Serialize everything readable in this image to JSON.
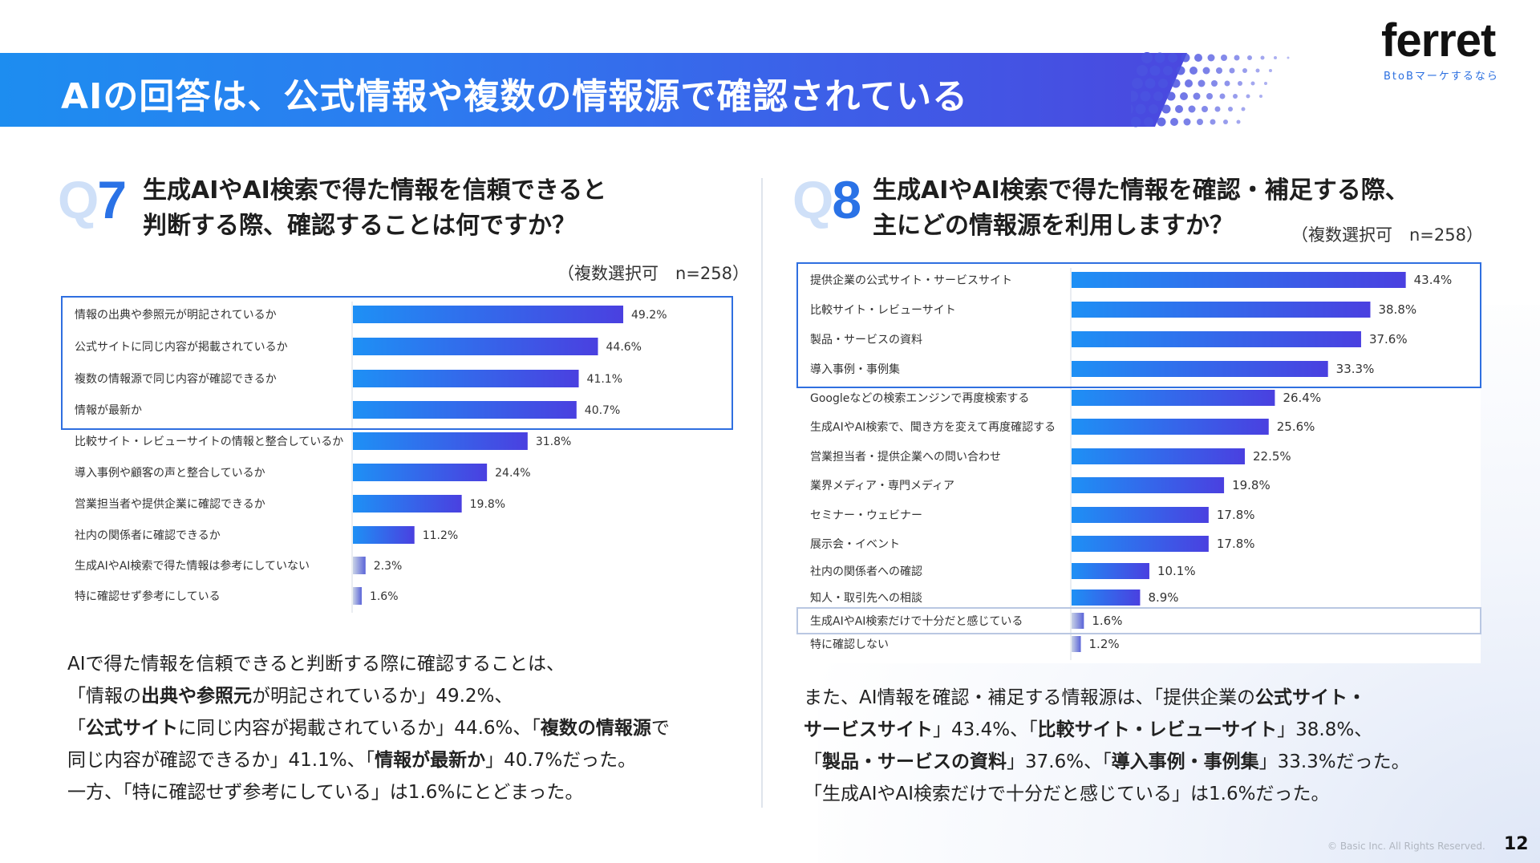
{
  "header": {
    "title": "AIの回答は、公式情報や複数の情報源で確認されている",
    "logo_text": "ferret",
    "logo_tagline": "BtoBマーケするなら"
  },
  "q7": {
    "label_q": "Q",
    "label_num": "7",
    "title_line1": "生成AIやAI検索で得た情報を信頼できると",
    "title_line2": "判断する際、確認することは何ですか？",
    "note": "（複数選択可　n=258）"
  },
  "q8": {
    "label_q": "Q",
    "label_num": "8",
    "title_line1": "生成AIやAI検索で得た情報を確認・補足する際、",
    "title_line2": "主にどの情報源を利用しますか？",
    "note": "（複数選択可　n=258）"
  },
  "chart_data": [
    {
      "type": "bar",
      "orientation": "horizontal",
      "categories": [
        "情報の出典や参照元が明記されているか",
        "公式サイトに同じ内容が掲載されているか",
        "複数の情報源で同じ内容が確認できるか",
        "情報が最新か",
        "比較サイト・レビューサイトの情報と整合しているか",
        "導入事例や顧客の声と整合しているか",
        "営業担当者や提供企業に確認できるか",
        "社内の関係者に確認できるか",
        "生成AIやAI検索で得た情報は参考にしていない",
        "特に確認せず参考にしている"
      ],
      "values": [
        49.2,
        44.6,
        41.1,
        40.7,
        31.8,
        24.4,
        19.8,
        11.2,
        2.3,
        1.6
      ],
      "labels": [
        "49.2%",
        "44.6%",
        "41.1%",
        "40.7%",
        "31.8%",
        "24.4%",
        "19.8%",
        "11.2%",
        "2.3%",
        "1.6%"
      ],
      "highlight_top": 4,
      "highlight_color": "#2f6fe0"
    },
    {
      "type": "bar",
      "orientation": "horizontal",
      "categories": [
        "提供企業の公式サイト・サービスサイト",
        "比較サイト・レビューサイト",
        "製品・サービスの資料",
        "導入事例・事例集",
        "Googleなどの検索エンジンで再度検索する",
        "生成AIやAI検索で、聞き方を変えて再度確認する",
        "営業担当者・提供企業への問い合わせ",
        "業界メディア・専門メディア",
        "セミナー・ウェビナー",
        "展示会・イベント",
        "社内の関係者への確認",
        "知人・取引先への相談",
        "生成AIやAI検索だけで十分だと感じている",
        "特に確認しない"
      ],
      "values": [
        43.4,
        38.8,
        37.6,
        33.3,
        26.4,
        25.6,
        22.5,
        19.8,
        17.8,
        17.8,
        10.1,
        8.9,
        1.6,
        1.2
      ],
      "labels": [
        "43.4%",
        "38.8%",
        "37.6%",
        "33.3%",
        "26.4%",
        "25.6%",
        "22.5%",
        "19.8%",
        "17.8%",
        "17.8%",
        "10.1%",
        "8.9%",
        "1.6%",
        "1.2%"
      ],
      "highlight_top": 4,
      "highlight_extra_index": 12,
      "highlight_color": "#2f6fe0",
      "extra_highlight_color": "#b9c7e2"
    }
  ],
  "summary_q7": [
    [
      {
        "t": "AIで得た情報を信頼できると判断する際に確認することは、"
      }
    ],
    [
      {
        "t": "「情報の"
      },
      {
        "t": "出典や参照元",
        "b": true
      },
      {
        "t": "が明記されているか」49.2%、"
      }
    ],
    [
      {
        "t": "「"
      },
      {
        "t": "公式サイト",
        "b": true
      },
      {
        "t": "に同じ内容が掲載されているか」44.6%、「"
      },
      {
        "t": "複数の情報源",
        "b": true
      },
      {
        "t": "で"
      }
    ],
    [
      {
        "t": "同じ内容が確認できるか」41.1%、「"
      },
      {
        "t": "情報が最新か",
        "b": true
      },
      {
        "t": "」40.7%だった。"
      }
    ],
    [
      {
        "t": "一方、「特に確認せず参考にしている」は1.6%にとどまった。"
      }
    ]
  ],
  "summary_q8": [
    [
      {
        "t": "また、AI情報を確認・補足する情報源は、「提供企業の"
      },
      {
        "t": "公式サイト・",
        "b": true
      }
    ],
    [
      {
        "t": "サービスサイト",
        "b": true
      },
      {
        "t": "」43.4%、「"
      },
      {
        "t": "比較サイト・レビューサイト",
        "b": true
      },
      {
        "t": "」38.8%、"
      }
    ],
    [
      {
        "t": "「"
      },
      {
        "t": "製品・サービスの資料",
        "b": true
      },
      {
        "t": "」37.6%、「"
      },
      {
        "t": "導入事例・事例集",
        "b": true
      },
      {
        "t": "」33.3%だった。"
      }
    ],
    [
      {
        "t": "「生成AIやAI検索だけで十分だと感じている」は1.6%だった。"
      }
    ]
  ],
  "footer": {
    "copyright": "© Basic Inc. All Rights Reserved.",
    "page": "12"
  }
}
